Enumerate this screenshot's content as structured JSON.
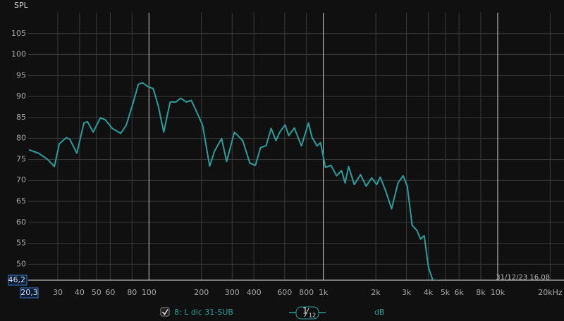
{
  "chart_data": {
    "type": "line",
    "y_label": "SPL",
    "xscale": "log",
    "xlim": [
      20.3,
      24000
    ],
    "ylim": [
      46.2,
      110
    ],
    "xticks": [
      {
        "value": 20.3,
        "label": "20,3"
      },
      30,
      40,
      50,
      60,
      80,
      100,
      200,
      300,
      400,
      600,
      800,
      {
        "value": 1000,
        "label": "1k"
      },
      {
        "value": 2000,
        "label": "2k"
      },
      {
        "value": 3000,
        "label": "3k"
      },
      {
        "value": 4000,
        "label": "4k"
      },
      {
        "value": 5000,
        "label": "5k"
      },
      {
        "value": 6000,
        "label": "6k"
      },
      {
        "value": 8000,
        "label": "8k"
      },
      {
        "value": 10000,
        "label": "10k"
      },
      {
        "value": 20000,
        "label": "20kHz"
      }
    ],
    "yticks": [
      {
        "value": 46.2,
        "label": "46,2"
      },
      50,
      55,
      60,
      65,
      70,
      75,
      80,
      85,
      90,
      95,
      100,
      105
    ],
    "grid": true,
    "x": [
      20.5,
      23.2,
      26.1,
      28.7,
      30.6,
      33.6,
      35.2,
      38.6,
      42.4,
      44.4,
      47.9,
      52.6,
      56.1,
      61.6,
      68.9,
      74.2,
      81.4,
      86.9,
      91.9,
      98.1,
      105.8,
      112.9,
      121.6,
      132.3,
      142.6,
      152,
      164,
      175,
      188.6,
      203,
      223,
      238,
      261,
      279,
      309,
      345,
      379,
      408,
      436,
      470,
      502,
      535,
      566,
      604,
      633,
      682,
      749,
      822,
      861,
      920,
      963,
      1028,
      1107,
      1191,
      1272,
      1333,
      1397,
      1504,
      1636,
      1760,
      1896,
      2024,
      2120,
      2284,
      2461,
      2681,
      2870,
      3030,
      3230,
      3450,
      3610,
      3790,
      4010,
      4270,
      4680
    ],
    "series": [
      {
        "name": "8: L dic 31-SUB",
        "color": "#2a9e9c",
        "values": [
          77.3,
          76.5,
          75.1,
          73.3,
          78.7,
          80.2,
          79.8,
          76.5,
          83.7,
          84,
          81.5,
          84.9,
          84.5,
          82.4,
          81.2,
          83.2,
          88.7,
          92.9,
          93.3,
          92.4,
          91.9,
          87.9,
          81.5,
          88.7,
          88.7,
          89.6,
          88.7,
          89.1,
          86.2,
          83.2,
          73.4,
          77,
          80,
          74.5,
          81.5,
          79.5,
          74.1,
          73.6,
          77.8,
          78.3,
          82.4,
          79.5,
          81.7,
          83.2,
          80.7,
          82.5,
          78.2,
          83.7,
          80.3,
          78.2,
          79,
          73.1,
          73.6,
          71.1,
          72.3,
          69.4,
          73.3,
          69,
          71.4,
          68.6,
          70.6,
          69,
          70.8,
          67.4,
          63.2,
          69.4,
          71.1,
          68.6,
          59.3,
          58,
          56,
          56.8,
          49.2,
          45.9,
          46.2
        ]
      }
    ],
    "legend_checked": true,
    "smoothing": {
      "numerator": "1",
      "denominator": "12"
    },
    "units": "dB",
    "timestamp": "31/12/23 16.08"
  }
}
